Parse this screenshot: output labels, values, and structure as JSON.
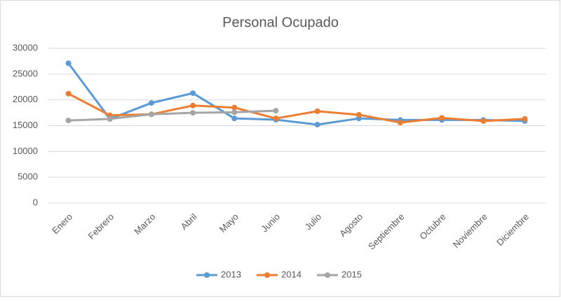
{
  "chart_data": {
    "type": "line",
    "title": "Personal Ocupado",
    "categories": [
      "Enero",
      "Febrero",
      "Marzo",
      "Abril",
      "Mayo",
      "Junio",
      "Julio",
      "Agosto",
      "Septiembre",
      "Octubre",
      "Noviembre",
      "Diciembre"
    ],
    "series": [
      {
        "name": "2013",
        "color": "#5b9bd5",
        "values": [
          27100,
          16300,
          19400,
          21300,
          16400,
          16150,
          15200,
          16400,
          16100,
          16100,
          16100,
          15900
        ]
      },
      {
        "name": "2014",
        "color": "#ed7d31",
        "values": [
          21200,
          17000,
          17200,
          18900,
          18500,
          16400,
          17800,
          17100,
          15600,
          16500,
          15900,
          16300
        ]
      },
      {
        "name": "2015",
        "color": "#a5a5a5",
        "values": [
          16000,
          16300,
          17200,
          17500,
          17600,
          17900,
          null,
          null,
          null,
          null,
          null,
          null
        ]
      }
    ],
    "ylim": [
      0,
      30000
    ],
    "yticks": [
      0,
      5000,
      10000,
      15000,
      20000,
      25000,
      30000
    ],
    "grid": true,
    "legend": "bottom"
  }
}
